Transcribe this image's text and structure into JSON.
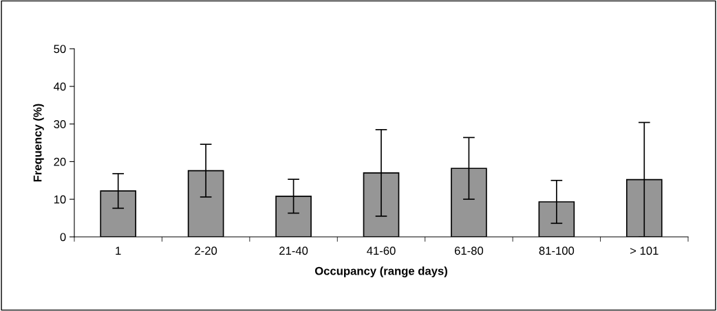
{
  "chart_data": {
    "type": "bar",
    "xlabel": "Occupancy (range days)",
    "ylabel": "Frequency (%)",
    "categories": [
      "1",
      "2-20",
      "21-40",
      "41-60",
      "61-80",
      "81-100",
      "> 101"
    ],
    "values": [
      12.2,
      17.6,
      10.8,
      17.0,
      18.2,
      9.3,
      15.2
    ],
    "errors": [
      4.6,
      7.0,
      4.5,
      11.5,
      8.2,
      5.7,
      15.2
    ],
    "color": "#969696",
    "ylim": [
      0,
      50
    ],
    "yticks": [
      0,
      10,
      20,
      30,
      40,
      50
    ],
    "grid": false
  }
}
